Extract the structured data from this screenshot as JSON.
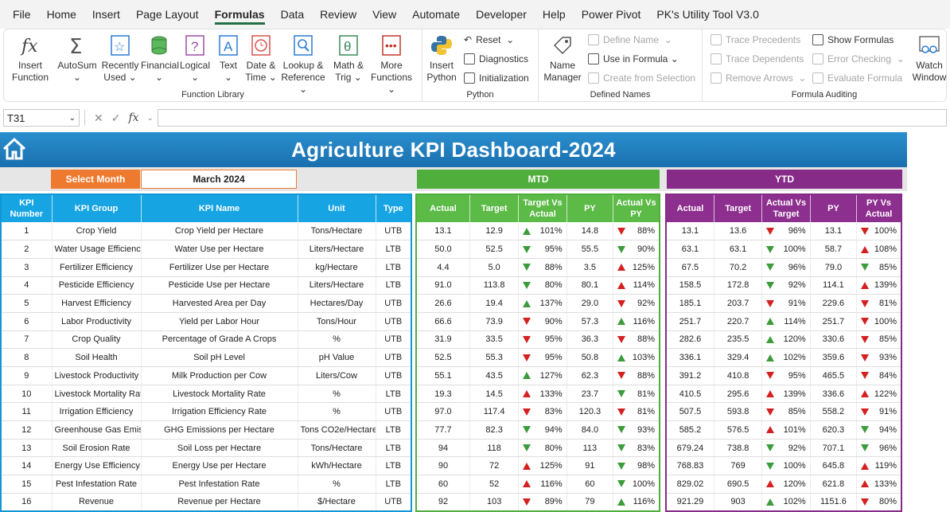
{
  "menu": [
    "File",
    "Home",
    "Insert",
    "Page Layout",
    "Formulas",
    "Data",
    "Review",
    "View",
    "Automate",
    "Developer",
    "Help",
    "Power Pivot",
    "PK's Utility Tool V3.0"
  ],
  "active_menu": "Formulas",
  "ribbon": {
    "function_library": {
      "label": "Function Library",
      "insert_function": [
        "Insert",
        "Function"
      ],
      "autosum": "AutoSum",
      "recently_used": [
        "Recently",
        "Used"
      ],
      "financial": "Financial",
      "logical": "Logical",
      "text": "Text",
      "date_time": [
        "Date &",
        "Time"
      ],
      "lookup_reference": [
        "Lookup &",
        "Reference"
      ],
      "math_trig": [
        "Math &",
        "Trig"
      ],
      "more_functions": [
        "More",
        "Functions"
      ]
    },
    "python": {
      "label": "Python",
      "insert_python": [
        "Insert",
        "Python"
      ],
      "reset": "Reset",
      "diagnostics": "Diagnostics",
      "initialization": "Initialization"
    },
    "defined_names": {
      "label": "Defined Names",
      "name_manager": [
        "Name",
        "Manager"
      ],
      "define_name": "Define Name",
      "use_in_formula": "Use in Formula",
      "create_from_selection": "Create from Selection"
    },
    "formula_auditing": {
      "label": "Formula Auditing",
      "trace_precedents": "Trace Precedents",
      "trace_dependents": "Trace Dependents",
      "remove_arrows": "Remove Arrows",
      "show_formulas": "Show Formulas",
      "error_checking": "Error Checking",
      "evaluate_formula": "Evaluate Formula",
      "watch_window": [
        "Watch",
        "Window"
      ]
    }
  },
  "formula_bar": {
    "name_box": "T31",
    "fx": "fx",
    "formula": ""
  },
  "dashboard": {
    "title": "Agriculture KPI Dashboard-2024",
    "select_month_label": "Select Month",
    "selected_month": "March 2024",
    "mtd_label": "MTD",
    "ytd_label": "YTD",
    "kpi_headers": [
      [
        "KPI",
        "Number"
      ],
      [
        "KPI Group"
      ],
      [
        "KPI Name"
      ],
      [
        "Unit"
      ],
      [
        "Type"
      ]
    ],
    "mtd_headers": [
      [
        "Actual"
      ],
      [
        "Target"
      ],
      [
        "Target Vs",
        "Actual"
      ],
      [
        "PY"
      ],
      [
        "Actual Vs",
        "PY"
      ]
    ],
    "ytd_headers": [
      [
        "Actual"
      ],
      [
        "Target"
      ],
      [
        "Actual Vs",
        "Target"
      ],
      [
        "PY"
      ],
      [
        "PY Vs",
        "Actual"
      ]
    ],
    "colors": {
      "mtd": "#4fae3c",
      "ytd": "#862b87",
      "kpi": "#17a4e3",
      "up": "#3c9c3c",
      "down": "#d42020"
    },
    "rows": [
      {
        "num": "1",
        "group": "Crop Yield",
        "name": "Crop Yield per Hectare",
        "unit": "Tons/Hectare",
        "type": "UTB",
        "mtd": {
          "actual": "13.1",
          "target": "12.9",
          "tva": "101%",
          "tva_dir": "up-green",
          "py": "14.8",
          "avp": "88%",
          "avp_dir": "down-red"
        },
        "ytd": {
          "actual": "13.1",
          "target": "13.6",
          "avt": "96%",
          "avt_dir": "down-red",
          "py": "13.1",
          "pva": "100%",
          "pva_dir": "down-red"
        }
      },
      {
        "num": "2",
        "group": "Water Usage Efficiency",
        "name": "Water Use per Hectare",
        "unit": "Liters/Hectare",
        "type": "LTB",
        "mtd": {
          "actual": "50.0",
          "target": "52.5",
          "tva": "95%",
          "tva_dir": "down-green",
          "py": "55.5",
          "avp": "90%",
          "avp_dir": "down-green"
        },
        "ytd": {
          "actual": "63.1",
          "target": "63.1",
          "avt": "100%",
          "avt_dir": "down-green",
          "py": "58.7",
          "pva": "108%",
          "pva_dir": "up-red"
        }
      },
      {
        "num": "3",
        "group": "Fertilizer Efficiency",
        "name": "Fertilizer Use per Hectare",
        "unit": "kg/Hectare",
        "type": "LTB",
        "mtd": {
          "actual": "4.4",
          "target": "5.0",
          "tva": "88%",
          "tva_dir": "down-green",
          "py": "3.5",
          "avp": "125%",
          "avp_dir": "up-red"
        },
        "ytd": {
          "actual": "67.5",
          "target": "70.2",
          "avt": "96%",
          "avt_dir": "down-green",
          "py": "79.0",
          "pva": "85%",
          "pva_dir": "down-green"
        }
      },
      {
        "num": "4",
        "group": "Pesticide Efficiency",
        "name": "Pesticide Use per Hectare",
        "unit": "Liters/Hectare",
        "type": "LTB",
        "mtd": {
          "actual": "91.0",
          "target": "113.8",
          "tva": "80%",
          "tva_dir": "down-green",
          "py": "80.1",
          "avp": "114%",
          "avp_dir": "up-red"
        },
        "ytd": {
          "actual": "158.5",
          "target": "172.8",
          "avt": "92%",
          "avt_dir": "down-green",
          "py": "114.1",
          "pva": "139%",
          "pva_dir": "up-red"
        }
      },
      {
        "num": "5",
        "group": "Harvest Efficiency",
        "name": "Harvested Area per Day",
        "unit": "Hectares/Day",
        "type": "UTB",
        "mtd": {
          "actual": "26.6",
          "target": "19.4",
          "tva": "137%",
          "tva_dir": "up-green",
          "py": "29.0",
          "avp": "92%",
          "avp_dir": "down-red"
        },
        "ytd": {
          "actual": "185.1",
          "target": "203.7",
          "avt": "91%",
          "avt_dir": "down-red",
          "py": "229.6",
          "pva": "81%",
          "pva_dir": "down-red"
        }
      },
      {
        "num": "6",
        "group": "Labor Productivity",
        "name": "Yield per Labor Hour",
        "unit": "Tons/Hour",
        "type": "UTB",
        "mtd": {
          "actual": "66.6",
          "target": "73.9",
          "tva": "90%",
          "tva_dir": "down-red",
          "py": "57.3",
          "avp": "116%",
          "avp_dir": "up-green"
        },
        "ytd": {
          "actual": "251.7",
          "target": "220.7",
          "avt": "114%",
          "avt_dir": "up-green",
          "py": "251.7",
          "pva": "100%",
          "pva_dir": "down-red"
        }
      },
      {
        "num": "7",
        "group": "Crop Quality",
        "name": "Percentage of Grade A Crops",
        "unit": "%",
        "type": "UTB",
        "mtd": {
          "actual": "31.9",
          "target": "33.5",
          "tva": "95%",
          "tva_dir": "down-red",
          "py": "36.3",
          "avp": "88%",
          "avp_dir": "down-red"
        },
        "ytd": {
          "actual": "282.6",
          "target": "235.5",
          "avt": "120%",
          "avt_dir": "up-green",
          "py": "330.6",
          "pva": "85%",
          "pva_dir": "down-red"
        }
      },
      {
        "num": "8",
        "group": "Soil Health",
        "name": "Soil pH Level",
        "unit": "pH Value",
        "type": "UTB",
        "mtd": {
          "actual": "52.5",
          "target": "55.3",
          "tva": "95%",
          "tva_dir": "down-red",
          "py": "50.8",
          "avp": "103%",
          "avp_dir": "up-green"
        },
        "ytd": {
          "actual": "336.1",
          "target": "329.4",
          "avt": "102%",
          "avt_dir": "up-green",
          "py": "359.6",
          "pva": "93%",
          "pva_dir": "down-red"
        }
      },
      {
        "num": "9",
        "group": "Livestock Productivity",
        "name": "Milk Production per Cow",
        "unit": "Liters/Cow",
        "type": "UTB",
        "mtd": {
          "actual": "55.1",
          "target": "43.5",
          "tva": "127%",
          "tva_dir": "up-green",
          "py": "62.3",
          "avp": "88%",
          "avp_dir": "down-red"
        },
        "ytd": {
          "actual": "391.2",
          "target": "410.8",
          "avt": "95%",
          "avt_dir": "down-red",
          "py": "465.5",
          "pva": "84%",
          "pva_dir": "down-red"
        }
      },
      {
        "num": "10",
        "group": "Livestock Mortality Rate",
        "name": "Livestock Mortality Rate",
        "unit": "%",
        "type": "LTB",
        "mtd": {
          "actual": "19.3",
          "target": "14.5",
          "tva": "133%",
          "tva_dir": "up-red",
          "py": "23.7",
          "avp": "81%",
          "avp_dir": "down-green"
        },
        "ytd": {
          "actual": "410.5",
          "target": "295.6",
          "avt": "139%",
          "avt_dir": "up-red",
          "py": "336.6",
          "pva": "122%",
          "pva_dir": "up-red"
        }
      },
      {
        "num": "11",
        "group": "Irrigation Efficiency",
        "name": "Irrigation Efficiency Rate",
        "unit": "%",
        "type": "UTB",
        "mtd": {
          "actual": "97.0",
          "target": "117.4",
          "tva": "83%",
          "tva_dir": "down-red",
          "py": "120.3",
          "avp": "81%",
          "avp_dir": "down-red"
        },
        "ytd": {
          "actual": "507.5",
          "target": "593.8",
          "avt": "85%",
          "avt_dir": "down-red",
          "py": "558.2",
          "pva": "91%",
          "pva_dir": "down-red"
        }
      },
      {
        "num": "12",
        "group": "Greenhouse Gas Emissions",
        "name": "GHG Emissions per Hectare",
        "unit": "Tons CO2e/Hectare",
        "type": "LTB",
        "mtd": {
          "actual": "77.7",
          "target": "82.3",
          "tva": "94%",
          "tva_dir": "down-green",
          "py": "84.0",
          "avp": "93%",
          "avp_dir": "down-green"
        },
        "ytd": {
          "actual": "585.2",
          "target": "576.5",
          "avt": "101%",
          "avt_dir": "up-red",
          "py": "620.3",
          "pva": "94%",
          "pva_dir": "down-green"
        }
      },
      {
        "num": "13",
        "group": "Soil Erosion Rate",
        "name": "Soil Loss per Hectare",
        "unit": "Tons/Hectare",
        "type": "LTB",
        "mtd": {
          "actual": "94",
          "target": "118",
          "tva": "80%",
          "tva_dir": "down-green",
          "py": "113",
          "avp": "83%",
          "avp_dir": "down-green"
        },
        "ytd": {
          "actual": "679.24",
          "target": "738.8",
          "avt": "92%",
          "avt_dir": "down-green",
          "py": "707.1",
          "pva": "96%",
          "pva_dir": "down-green"
        }
      },
      {
        "num": "14",
        "group": "Energy Use Efficiency",
        "name": "Energy Use per Hectare",
        "unit": "kWh/Hectare",
        "type": "LTB",
        "mtd": {
          "actual": "90",
          "target": "72",
          "tva": "125%",
          "tva_dir": "up-red",
          "py": "91",
          "avp": "98%",
          "avp_dir": "down-green"
        },
        "ytd": {
          "actual": "768.83",
          "target": "769",
          "avt": "100%",
          "avt_dir": "down-green",
          "py": "645.8",
          "pva": "119%",
          "pva_dir": "up-red"
        }
      },
      {
        "num": "15",
        "group": "Pest Infestation Rate",
        "name": "Pest Infestation Rate",
        "unit": "%",
        "type": "LTB",
        "mtd": {
          "actual": "60",
          "target": "52",
          "tva": "116%",
          "tva_dir": "up-red",
          "py": "60",
          "avp": "100%",
          "avp_dir": "down-green"
        },
        "ytd": {
          "actual": "829.02",
          "target": "690.5",
          "avt": "120%",
          "avt_dir": "up-red",
          "py": "621.8",
          "pva": "133%",
          "pva_dir": "up-red"
        }
      },
      {
        "num": "16",
        "group": "Revenue",
        "name": "Revenue per Hectare",
        "unit": "$/Hectare",
        "type": "UTB",
        "mtd": {
          "actual": "92",
          "target": "103",
          "tva": "89%",
          "tva_dir": "down-red",
          "py": "79",
          "avp": "116%",
          "avp_dir": "up-green"
        },
        "ytd": {
          "actual": "921.29",
          "target": "903",
          "avt": "102%",
          "avt_dir": "up-green",
          "py": "1151.6",
          "pva": "80%",
          "pva_dir": "down-red"
        }
      }
    ]
  }
}
